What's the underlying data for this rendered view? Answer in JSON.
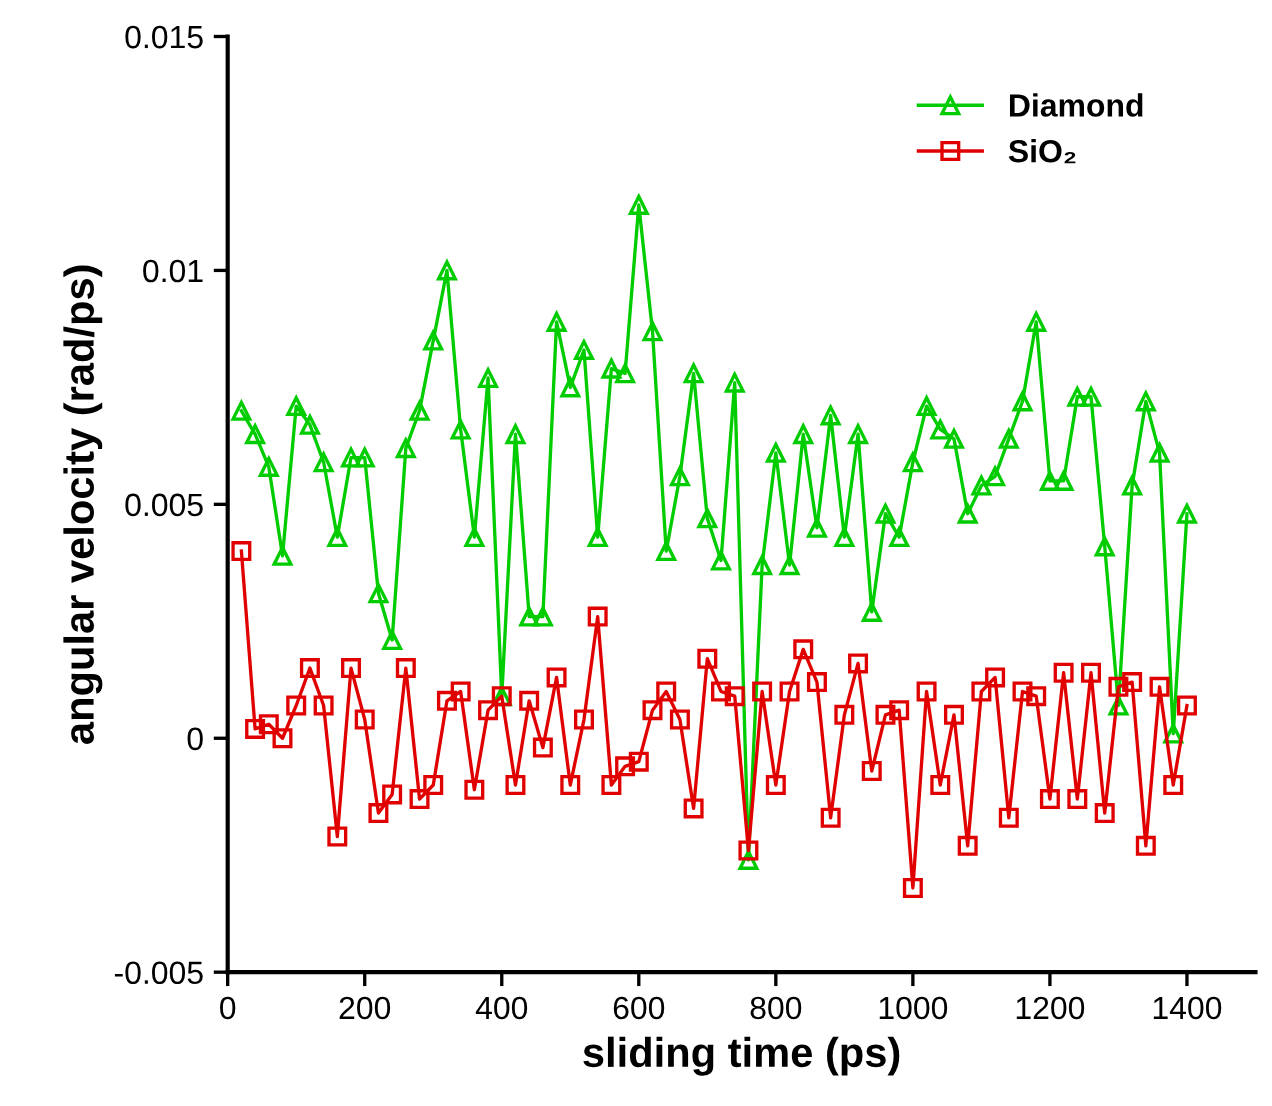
{
  "chart_data": {
    "type": "line",
    "xlabel": "sliding time (ps)",
    "ylabel": "angular velocity (rad/ps)",
    "x": [
      20,
      40,
      60,
      80,
      100,
      120,
      140,
      160,
      180,
      200,
      220,
      240,
      260,
      280,
      300,
      320,
      340,
      360,
      380,
      400,
      420,
      440,
      460,
      480,
      500,
      520,
      540,
      560,
      580,
      600,
      620,
      640,
      660,
      680,
      700,
      720,
      740,
      760,
      780,
      800,
      820,
      840,
      860,
      880,
      900,
      920,
      940,
      960,
      980,
      1000,
      1020,
      1040,
      1060,
      1080,
      1100,
      1120,
      1140,
      1160,
      1180,
      1200,
      1220,
      1240,
      1260,
      1280,
      1300,
      1320,
      1340,
      1360,
      1380,
      1400
    ],
    "series": [
      {
        "name": "Diamond",
        "color": "#00cc00",
        "marker": "triangle",
        "values": [
          0.007,
          0.0065,
          0.0058,
          0.0039,
          0.0071,
          0.0067,
          0.0059,
          0.0043,
          0.006,
          0.006,
          0.0031,
          0.0021,
          0.0062,
          0.007,
          0.0085,
          0.01,
          0.0066,
          0.0043,
          0.0077,
          0.0009,
          0.0065,
          0.0026,
          0.0026,
          0.0089,
          0.0075,
          0.0083,
          0.0043,
          0.0079,
          0.0078,
          0.0114,
          0.0087,
          0.004,
          0.0056,
          0.0078,
          0.0047,
          0.0038,
          0.0076,
          -0.0026,
          0.0037,
          0.0061,
          0.0037,
          0.0065,
          0.0045,
          0.0069,
          0.0043,
          0.0065,
          0.0027,
          0.0048,
          0.0043,
          0.0059,
          0.0071,
          0.0066,
          0.0064,
          0.0048,
          0.0054,
          0.0056,
          0.0064,
          0.0072,
          0.0089,
          0.0055,
          0.0055,
          0.0073,
          0.0073,
          0.0041,
          0.0007,
          0.0054,
          0.0072,
          0.0061,
          0.0001,
          0.0048
        ]
      },
      {
        "name": "SiO₂",
        "color": "#e00000",
        "marker": "square",
        "values": [
          0.004,
          0.0002,
          0.0003,
          0.0,
          0.0007,
          0.0015,
          0.0007,
          -0.0021,
          0.0015,
          0.0004,
          -0.0016,
          -0.0012,
          0.0015,
          -0.0013,
          -0.001,
          0.0008,
          0.001,
          -0.0011,
          0.0006,
          0.0009,
          -0.001,
          0.0008,
          -0.0002,
          0.0013,
          -0.001,
          0.0004,
          0.0026,
          -0.001,
          -0.0006,
          -0.0005,
          0.0006,
          0.001,
          0.0004,
          -0.0015,
          0.0017,
          0.001,
          0.0009,
          -0.0024,
          0.001,
          -0.001,
          0.001,
          0.0019,
          0.0012,
          -0.0017,
          0.0005,
          0.0016,
          -0.0007,
          0.0005,
          0.0006,
          -0.0032,
          0.001,
          -0.001,
          0.0005,
          -0.0023,
          0.001,
          0.0013,
          -0.0017,
          0.001,
          0.0009,
          -0.0013,
          0.0014,
          -0.0013,
          0.0014,
          -0.0016,
          0.0011,
          0.0012,
          -0.0023,
          0.0011,
          -0.001,
          0.0007
        ]
      }
    ],
    "xlim": [
      0,
      1500
    ],
    "xticks": [
      0,
      200,
      400,
      600,
      800,
      1000,
      1200,
      1400
    ],
    "ylim": [
      -0.005,
      0.015
    ],
    "yticks": [
      {
        "value": -0.005,
        "label": "-0.005"
      },
      0,
      0.005,
      0.01,
      0.015
    ],
    "grid": false,
    "legend": "top right",
    "line_style": "solid"
  }
}
